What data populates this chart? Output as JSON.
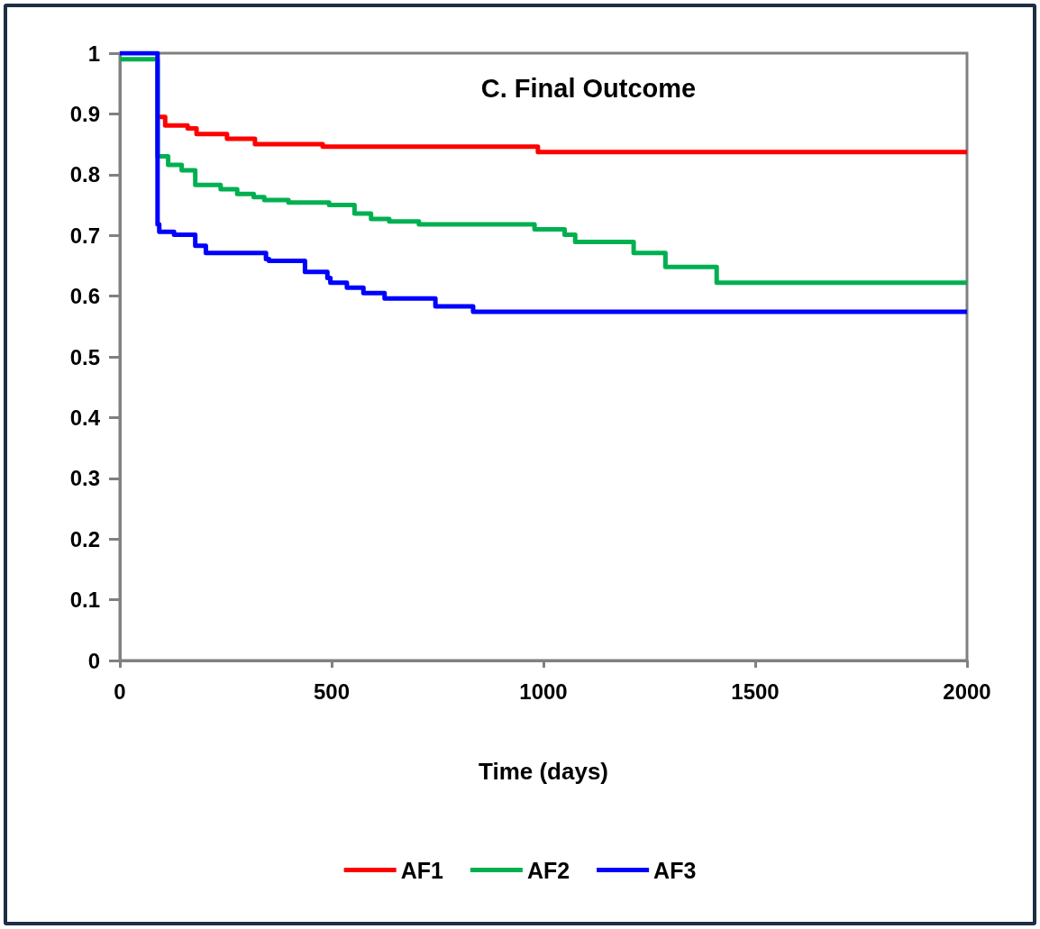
{
  "chart_data": {
    "type": "step",
    "title": "C. Final Outcome",
    "xlabel": "Time (days)",
    "xlim": [
      0,
      2000
    ],
    "xticks": [
      0,
      500,
      1000,
      1500,
      2000
    ],
    "ylim": [
      0,
      1
    ],
    "yticks": [
      0,
      0.1,
      0.2,
      0.3,
      0.4,
      0.5,
      0.6,
      0.7,
      0.8,
      0.9,
      1
    ],
    "grid": false,
    "legend": "bottom",
    "marker": "none",
    "line_style": "solid",
    "series": [
      {
        "name": "AF1",
        "color": "#ff0000",
        "x": [
          89,
          107,
          160,
          181,
          253,
          319,
          479,
          987,
          2000
        ],
        "values": [
          0.895,
          0.881,
          0.876,
          0.867,
          0.859,
          0.85,
          0.846,
          0.837,
          0.837
        ]
      },
      {
        "name": "AF2",
        "color": "#00b050",
        "x": [
          0,
          89,
          114,
          146,
          178,
          238,
          277,
          316,
          341,
          398,
          494,
          554,
          593,
          636,
          706,
          979,
          1050,
          1075,
          1213,
          1288,
          1409,
          2000
        ],
        "values": [
          0.99,
          0.83,
          0.816,
          0.807,
          0.783,
          0.776,
          0.768,
          0.763,
          0.758,
          0.754,
          0.75,
          0.736,
          0.727,
          0.723,
          0.718,
          0.71,
          0.701,
          0.689,
          0.671,
          0.648,
          0.622,
          0.622
        ]
      },
      {
        "name": "AF3",
        "color": "#0000ff",
        "x": [
          0,
          89,
          93,
          128,
          178,
          203,
          345,
          352,
          437,
          490,
          497,
          536,
          575,
          625,
          745,
          834,
          2000
        ],
        "values": [
          1,
          0.718,
          0.706,
          0.701,
          0.683,
          0.671,
          0.661,
          0.658,
          0.64,
          0.63,
          0.622,
          0.614,
          0.605,
          0.596,
          0.583,
          0.574,
          0.574
        ]
      }
    ]
  }
}
